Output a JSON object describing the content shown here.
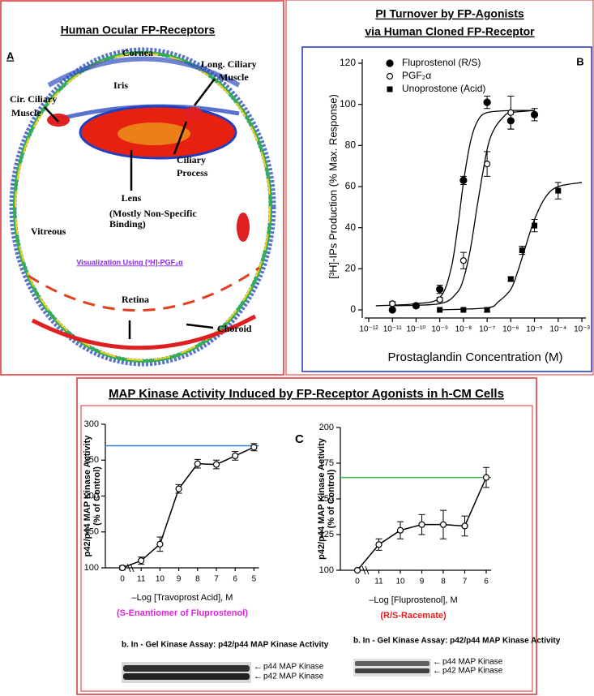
{
  "panel_a": {
    "title": "Human Ocular FP-Receptors",
    "letter": "A",
    "cornea": "Cornea",
    "cir_ciliary_muscle": [
      "Cir. Ciliary",
      "Muscle"
    ],
    "iris": "Iris",
    "long_ciliary_muscle": [
      "Long. Ciliary",
      "Muscle"
    ],
    "ciliary_process": [
      "Ciliary",
      "Process"
    ],
    "lens": "Lens",
    "lens_note": [
      "(Mostly Non-Specific",
      "Binding)"
    ],
    "vitreous": "Vitreous",
    "visualization": "Visualization Using [³H]-PGF₂α",
    "retina": "Retina",
    "choroid": "Choroid"
  },
  "map_kinase_title": "MAP Kinase Activity Induced by FP-Receptor Agonists in h-CM Cells",
  "chart_data": [
    {
      "type": "scatter",
      "title": "PI Turnover by FP-Agonists",
      "subtitle": "via Human Cloned FP-Receptor",
      "panel_label": "B",
      "x_label": "Prostaglandin Concentration (M)",
      "y_label": "[³H]-IPs  Production (% Max. Response)",
      "log_x": true,
      "xlim": [
        1e-12,
        0.001
      ],
      "xticks": [
        {
          "value": 1e-12,
          "label": "10⁻¹²"
        },
        {
          "value": 1e-11,
          "label": "10⁻¹¹"
        },
        {
          "value": 1e-10,
          "label": "10⁻¹⁰"
        },
        {
          "value": 1e-09,
          "label": "10⁻⁹"
        },
        {
          "value": 1e-08,
          "label": "10⁻⁸"
        },
        {
          "value": 1e-07,
          "label": "10⁻⁷"
        },
        {
          "value": 1e-06,
          "label": "10⁻⁶"
        },
        {
          "value": 1e-05,
          "label": "10⁻⁵"
        },
        {
          "value": 0.0001,
          "label": "10⁻⁴"
        },
        {
          "value": 0.001,
          "label": "10⁻³"
        }
      ],
      "ylim": [
        0,
        120
      ],
      "yticks": [
        0,
        20,
        40,
        60,
        80,
        100,
        120
      ],
      "series": [
        {
          "name": "Fluprostenol (R/S)",
          "marker": "filled-circle",
          "color": "#000000",
          "x": [
            1e-11,
            1e-10,
            1e-09,
            1e-08,
            1e-07,
            1e-06,
            1e-05
          ],
          "values": [
            0,
            2,
            10,
            63,
            101,
            92,
            95
          ],
          "errors": [
            0,
            1,
            2,
            2,
            3,
            4,
            3
          ]
        },
        {
          "name": "PGF₂α",
          "marker": "open-circle",
          "color": "#000000",
          "x": [
            1e-11,
            1e-09,
            1e-08,
            1e-07,
            1e-06
          ],
          "values": [
            3,
            5,
            24,
            71,
            96
          ],
          "errors": [
            1,
            1,
            4,
            6,
            8
          ]
        },
        {
          "name": "Unoprostone (Acid)",
          "marker": "filled-square",
          "color": "#000000",
          "x": [
            1e-09,
            1e-08,
            1e-07,
            1e-06,
            3e-06,
            1e-05,
            0.0001
          ],
          "values": [
            0,
            0,
            0,
            15,
            29,
            41,
            58
          ],
          "errors": [
            0,
            0,
            1,
            1,
            2,
            3,
            4
          ]
        }
      ],
      "fit_curves": [
        {
          "color": "#000000",
          "x": [
            2e-12,
            1e-10,
            1e-09,
            3e-09,
            6e-09,
            1e-08,
            2e-08,
            4e-08,
            1e-07,
            1e-06,
            1e-05
          ],
          "values": [
            2,
            3,
            6,
            20,
            42,
            62,
            82,
            92,
            96,
            97,
            97
          ]
        },
        {
          "color": "#000000",
          "x": [
            1e-11,
            1e-09,
            5e-09,
            1e-08,
            2e-08,
            4e-08,
            1e-07,
            2e-07,
            5e-07,
            1e-06,
            1e-05
          ],
          "values": [
            2,
            3,
            8,
            15,
            30,
            52,
            78,
            88,
            94,
            96,
            97
          ]
        },
        {
          "color": "#000000",
          "x": [
            1e-09,
            1e-07,
            3e-07,
            1e-06,
            2e-06,
            4e-06,
            1e-05,
            3e-05,
            0.0001,
            0.001
          ],
          "values": [
            0,
            1,
            4,
            10,
            19,
            30,
            44,
            55,
            60,
            62
          ]
        }
      ]
    },
    {
      "type": "line",
      "y_label": [
        "p42/p44 MAP Kinase Activity",
        "(% of Control)"
      ],
      "x_label": "–Log [Travoprost Acid], M",
      "subtitle": "(S-Enantiomer of Fluprostenol)",
      "subtitle_color": "#e020e0",
      "categories": [
        "0",
        "11",
        "10",
        "9",
        "8",
        "7",
        "6",
        "5"
      ],
      "values": [
        100,
        110,
        133,
        210,
        245,
        244,
        256,
        268
      ],
      "errors": [
        3,
        5,
        10,
        6,
        6,
        6,
        6,
        5
      ],
      "color": "#000000",
      "ylim": [
        100,
        300
      ],
      "yticks": [
        100,
        150,
        200,
        250,
        300
      ],
      "reference_line": {
        "value": 270,
        "color": "#2f7fd6"
      },
      "gel": {
        "caption": "b.   In - Gel Kinase Assay: p42/p44 MAP Kinase Activity",
        "bands": [
          "p44 MAP Kinase",
          "p42 MAP Kinase"
        ]
      }
    },
    {
      "type": "line",
      "panel_label": "C",
      "y_label": [
        "p42/p44 MAP Kinase Activity",
        "(% of Control)"
      ],
      "x_label": "–Log [Fluprostenol], M",
      "subtitle": "(R/S-Racemate)",
      "subtitle_color": "#e02020",
      "categories": [
        "0",
        "11",
        "10",
        "9",
        "8",
        "7",
        "6"
      ],
      "values": [
        100,
        118,
        128,
        132,
        132,
        131,
        165
      ],
      "errors": [
        0,
        4,
        6,
        7,
        10,
        7,
        7
      ],
      "color": "#000000",
      "ylim": [
        100,
        200
      ],
      "yticks": [
        100,
        125,
        150,
        175,
        200
      ],
      "reference_line": {
        "value": 165,
        "color": "#3cb04a"
      },
      "gel": {
        "caption": "b.   In - Gel Kinase Assay: p42/p44 MAP Kinase Activity",
        "bands": [
          "p44 MAP Kinase",
          "p42 MAP Kinase"
        ]
      }
    }
  ]
}
